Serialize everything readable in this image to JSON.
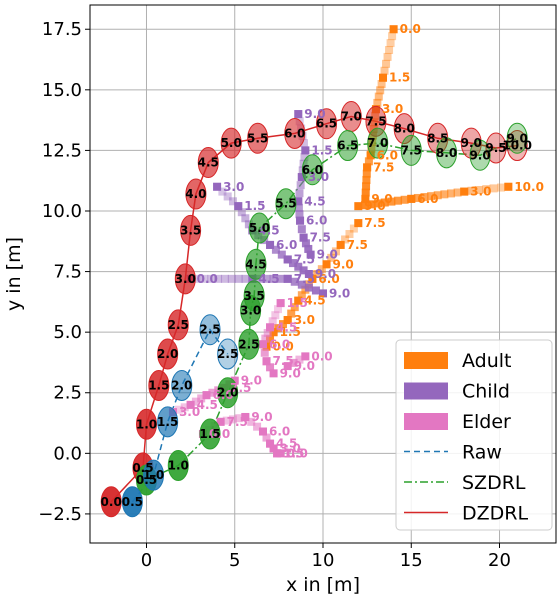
{
  "chart_data": {
    "type": "scatter",
    "xlabel": "x in [m]",
    "ylabel": "y in [m]",
    "xlim": [
      -3.2,
      23.2
    ],
    "ylim": [
      -3.7,
      18.5
    ],
    "xticks": [
      0,
      5,
      10,
      15,
      20
    ],
    "yticks": [
      -2.5,
      0.0,
      2.5,
      5.0,
      7.5,
      10.0,
      12.5,
      15.0,
      17.5
    ],
    "ytick_labels": [
      "−2.5",
      "0.0",
      "2.5",
      "5.0",
      "7.5",
      "10.0",
      "12.5",
      "15.0",
      "17.5"
    ],
    "grid": true,
    "legend_position": "lower right",
    "colors": {
      "adult": "#ff7f0e",
      "child": "#9467bd",
      "elder": "#e377c2",
      "raw": "#1f77b4",
      "szdrl": "#2ca02c",
      "dzdrl": "#d62728"
    },
    "legend": [
      {
        "label": "Adult",
        "kind": "patch",
        "color": "#ff7f0e"
      },
      {
        "label": "Child",
        "kind": "patch",
        "color": "#9467bd"
      },
      {
        "label": "Elder",
        "kind": "patch",
        "color": "#e377c2"
      },
      {
        "label": "Raw",
        "kind": "dashed",
        "color": "#1f77b4"
      },
      {
        "label": "SZDRL",
        "kind": "dashdot",
        "color": "#2ca02c"
      },
      {
        "label": "DZDRL",
        "kind": "solid",
        "color": "#d62728"
      }
    ],
    "robots": [
      {
        "name": "DZDRL",
        "color": "#d62728",
        "line": "solid",
        "points": [
          {
            "t": "0.0",
            "x": -2.0,
            "y": -2.0
          },
          {
            "t": "0.5",
            "x": -0.2,
            "y": -0.6
          },
          {
            "t": "1.0",
            "x": 0.0,
            "y": 1.2
          },
          {
            "t": "1.5",
            "x": 0.7,
            "y": 2.8
          },
          {
            "t": "2.0",
            "x": 1.2,
            "y": 4.1
          },
          {
            "t": "2.5",
            "x": 1.8,
            "y": 5.3
          },
          {
            "t": "3.0",
            "x": 2.2,
            "y": 7.2
          },
          {
            "t": "3.5",
            "x": 2.5,
            "y": 9.2
          },
          {
            "t": "4.0",
            "x": 2.8,
            "y": 10.7
          },
          {
            "t": "4.5",
            "x": 3.5,
            "y": 12.0
          },
          {
            "t": "5.0",
            "x": 4.8,
            "y": 12.8
          },
          {
            "t": "5.5",
            "x": 6.3,
            "y": 13.0
          },
          {
            "t": "6.0",
            "x": 8.4,
            "y": 13.2
          },
          {
            "t": "6.5",
            "x": 10.2,
            "y": 13.6
          },
          {
            "t": "7.0",
            "x": 11.6,
            "y": 13.9
          },
          {
            "t": "7.5",
            "x": 13.0,
            "y": 13.7
          },
          {
            "t": "8.0",
            "x": 14.6,
            "y": 13.4
          },
          {
            "t": "8.5",
            "x": 16.5,
            "y": 13.0
          },
          {
            "t": "9.0",
            "x": 18.4,
            "y": 12.8
          },
          {
            "t": "9.5",
            "x": 19.8,
            "y": 12.6
          },
          {
            "t": "10.0",
            "x": 21.0,
            "y": 12.7
          }
        ]
      },
      {
        "name": "SZDRL",
        "color": "#2ca02c",
        "line": "dashdot",
        "points": [
          {
            "t": "0.5",
            "x": 0.0,
            "y": -1.1
          },
          {
            "t": "1.0",
            "x": 1.8,
            "y": -0.5
          },
          {
            "t": "1.5",
            "x": 3.6,
            "y": 0.8
          },
          {
            "t": "2.0",
            "x": 4.6,
            "y": 2.5
          },
          {
            "t": "2.5",
            "x": 5.8,
            "y": 4.5
          },
          {
            "t": "3.0",
            "x": 5.9,
            "y": 5.9
          },
          {
            "t": "3.5",
            "x": 6.1,
            "y": 6.5
          },
          {
            "t": "4.5",
            "x": 6.2,
            "y": 7.8
          },
          {
            "t": "5.0",
            "x": 6.4,
            "y": 9.3
          },
          {
            "t": "5.5",
            "x": 7.9,
            "y": 10.3
          },
          {
            "t": "6.0",
            "x": 9.4,
            "y": 11.7
          },
          {
            "t": "6.5",
            "x": 11.4,
            "y": 12.7
          },
          {
            "t": "7.0",
            "x": 13.1,
            "y": 12.8
          },
          {
            "t": "7.5",
            "x": 15.0,
            "y": 12.5
          },
          {
            "t": "8.0",
            "x": 17.0,
            "y": 12.4
          },
          {
            "t": "9.0",
            "x": 18.9,
            "y": 12.3
          },
          {
            "t": "9.0",
            "x": 21.0,
            "y": 13.0
          }
        ]
      },
      {
        "name": "Raw",
        "color": "#1f77b4",
        "line": "dashed",
        "points": [
          {
            "t": "0.5",
            "x": -0.8,
            "y": -2.0
          },
          {
            "t": "1.0",
            "x": 0.4,
            "y": -0.9
          },
          {
            "t": "1.5",
            "x": 1.2,
            "y": 1.3
          },
          {
            "t": "2.0",
            "x": 2.0,
            "y": 2.8
          },
          {
            "t": "2.5",
            "x": 3.6,
            "y": 5.1
          },
          {
            "t": "2.5",
            "x": 4.6,
            "y": 4.1
          }
        ]
      }
    ],
    "humans": [
      {
        "class": "Adult",
        "color": "#ff7f0e",
        "points": [
          {
            "t": "0.0",
            "x": 14.0,
            "y": 17.5
          },
          {
            "t": "1.5",
            "x": 13.4,
            "y": 15.5
          },
          {
            "t": "3.0",
            "x": 13.0,
            "y": 14.2
          },
          {
            "t": "6.0",
            "x": 12.7,
            "y": 12.3
          },
          {
            "t": "7.5",
            "x": 12.5,
            "y": 11.8
          },
          {
            "t": "9.0",
            "x": 12.4,
            "y": 10.5
          }
        ]
      },
      {
        "class": "Adult",
        "color": "#ff7f0e",
        "points": [
          {
            "t": "10.0",
            "x": 20.5,
            "y": 11.0
          },
          {
            "t": "3.0",
            "x": 18.0,
            "y": 10.8
          },
          {
            "t": "6.0",
            "x": 15.0,
            "y": 10.5
          },
          {
            "t": "9.0",
            "x": 12.0,
            "y": 10.2
          }
        ]
      },
      {
        "class": "Adult",
        "color": "#ff7f0e",
        "points": [
          {
            "t": "7.5",
            "x": 12.0,
            "y": 9.5
          },
          {
            "t": "7.5",
            "x": 11.0,
            "y": 8.6
          },
          {
            "t": "9.0",
            "x": 10.2,
            "y": 7.8
          },
          {
            "t": "6.0",
            "x": 9.4,
            "y": 7.2
          },
          {
            "t": "4.5",
            "x": 8.6,
            "y": 6.3
          },
          {
            "t": "3.0",
            "x": 8.0,
            "y": 5.5
          },
          {
            "t": "1.5",
            "x": 7.2,
            "y": 5.0
          },
          {
            "t": "0.0",
            "x": 6.8,
            "y": 4.4
          }
        ]
      },
      {
        "class": "Child",
        "color": "#9467bd",
        "points": [
          {
            "t": "9.0",
            "x": 8.6,
            "y": 14.0
          },
          {
            "t": "1.5",
            "x": 9.0,
            "y": 12.5
          },
          {
            "t": "3.0",
            "x": 8.8,
            "y": 11.4
          },
          {
            "t": "4.5",
            "x": 8.6,
            "y": 10.4
          },
          {
            "t": "6.0",
            "x": 8.7,
            "y": 9.6
          },
          {
            "t": "7.5",
            "x": 8.9,
            "y": 8.9
          },
          {
            "t": "9.0",
            "x": 9.3,
            "y": 8.2
          }
        ]
      },
      {
        "class": "Child",
        "color": "#9467bd",
        "points": [
          {
            "t": "3.0",
            "x": 4.0,
            "y": 11.0
          },
          {
            "t": "1.5",
            "x": 5.2,
            "y": 10.2
          },
          {
            "t": "4.5",
            "x": 6.0,
            "y": 9.2
          },
          {
            "t": "6.0",
            "x": 7.0,
            "y": 8.6
          },
          {
            "t": "7.5",
            "x": 8.0,
            "y": 8.0
          },
          {
            "t": "9.0",
            "x": 9.2,
            "y": 7.4
          }
        ]
      },
      {
        "class": "Child",
        "color": "#9467bd",
        "points": [
          {
            "t": "0.0",
            "x": 2.5,
            "y": 7.2
          },
          {
            "t": "4.5",
            "x": 6.0,
            "y": 7.2
          },
          {
            "t": "7.5",
            "x": 8.0,
            "y": 7.2
          },
          {
            "t": "9.0",
            "x": 10.0,
            "y": 6.6
          }
        ]
      },
      {
        "class": "Elder",
        "color": "#e377c2",
        "points": [
          {
            "t": "1.5",
            "x": 7.6,
            "y": 6.2
          },
          {
            "t": "4.5",
            "x": 7.0,
            "y": 5.2
          },
          {
            "t": "6.0",
            "x": 6.6,
            "y": 4.5
          },
          {
            "t": "7.5",
            "x": 6.8,
            "y": 3.8
          },
          {
            "t": "9.0",
            "x": 7.2,
            "y": 3.3
          }
        ]
      },
      {
        "class": "Elder",
        "color": "#e377c2",
        "points": [
          {
            "t": "3.0",
            "x": 1.5,
            "y": 1.7
          },
          {
            "t": "4.5",
            "x": 2.5,
            "y": 2.0
          },
          {
            "t": "6.0",
            "x": 3.4,
            "y": 2.4
          },
          {
            "t": "7.5",
            "x": 4.4,
            "y": 2.7
          },
          {
            "t": "9.0",
            "x": 5.0,
            "y": 3.0
          }
        ]
      },
      {
        "class": "Elder",
        "color": "#e377c2",
        "points": [
          {
            "t": "0.0",
            "x": 3.2,
            "y": 0.8
          },
          {
            "t": "7.5",
            "x": 4.2,
            "y": 1.3
          },
          {
            "t": "9.0",
            "x": 5.6,
            "y": 1.5
          },
          {
            "t": "6.0",
            "x": 6.6,
            "y": 0.9
          },
          {
            "t": "4.5",
            "x": 7.0,
            "y": 0.4
          },
          {
            "t": "3.0",
            "x": 7.2,
            "y": 0.2
          },
          {
            "t": "1.5",
            "x": 7.4,
            "y": 0.0
          },
          {
            "t": "0.0",
            "x": 7.6,
            "y": 0.0
          }
        ]
      },
      {
        "class": "Elder",
        "color": "#e377c2",
        "points": [
          {
            "t": "0.0",
            "x": 9.0,
            "y": 4.0
          },
          {
            "t": "9.0",
            "x": 8.0,
            "y": 3.6
          }
        ]
      }
    ]
  }
}
